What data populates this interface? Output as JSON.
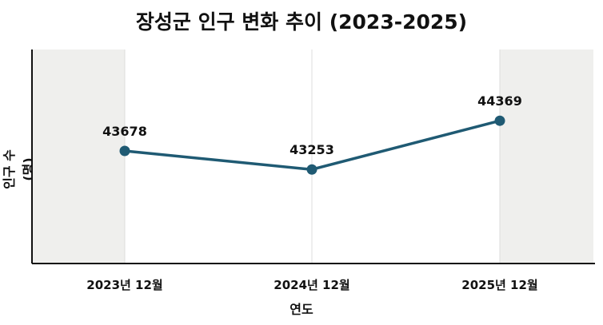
{
  "chart_data": {
    "type": "line",
    "title": "장성군 인구 변화 추이 (2023-2025)",
    "xlabel": "연도",
    "ylabel": "인구 수 (명)",
    "categories": [
      "2023년 12월",
      "2024년 12월",
      "2025년 12월"
    ],
    "values": [
      43678,
      43253,
      44369
    ],
    "data_labels": [
      "43678",
      "43253",
      "44369"
    ],
    "ylim": [
      41100,
      46000
    ],
    "grid": false,
    "legend": "none",
    "colors": {
      "line": "#1f5a73",
      "marker": "#1f5a73",
      "band": "#efefed"
    }
  }
}
